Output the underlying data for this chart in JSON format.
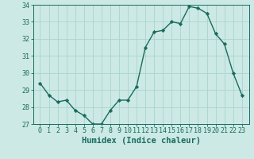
{
  "xlabel": "Humidex (Indice chaleur)",
  "x": [
    0,
    1,
    2,
    3,
    4,
    5,
    6,
    7,
    8,
    9,
    10,
    11,
    12,
    13,
    14,
    15,
    16,
    17,
    18,
    19,
    20,
    21,
    22,
    23
  ],
  "y": [
    29.4,
    28.7,
    28.3,
    28.4,
    27.8,
    27.5,
    27.0,
    27.0,
    27.8,
    28.4,
    28.4,
    29.2,
    31.5,
    32.4,
    32.5,
    33.0,
    32.9,
    33.9,
    33.8,
    33.5,
    32.3,
    31.7,
    30.0,
    28.7
  ],
  "line_color": "#1a6b5e",
  "marker": "D",
  "marker_size": 2.2,
  "bg_color": "#cce9e5",
  "grid_color": "#aad4cf",
  "tick_color": "#1a6b5e",
  "label_color": "#1a6b5e",
  "ylim": [
    27,
    34
  ],
  "yticks": [
    27,
    28,
    29,
    30,
    31,
    32,
    33,
    34
  ],
  "xticks": [
    0,
    1,
    2,
    3,
    4,
    5,
    6,
    7,
    8,
    9,
    10,
    11,
    12,
    13,
    14,
    15,
    16,
    17,
    18,
    19,
    20,
    21,
    22,
    23
  ],
  "xlabel_fontsize": 7.5,
  "tick_fontsize": 6.0,
  "line_width": 1.0
}
